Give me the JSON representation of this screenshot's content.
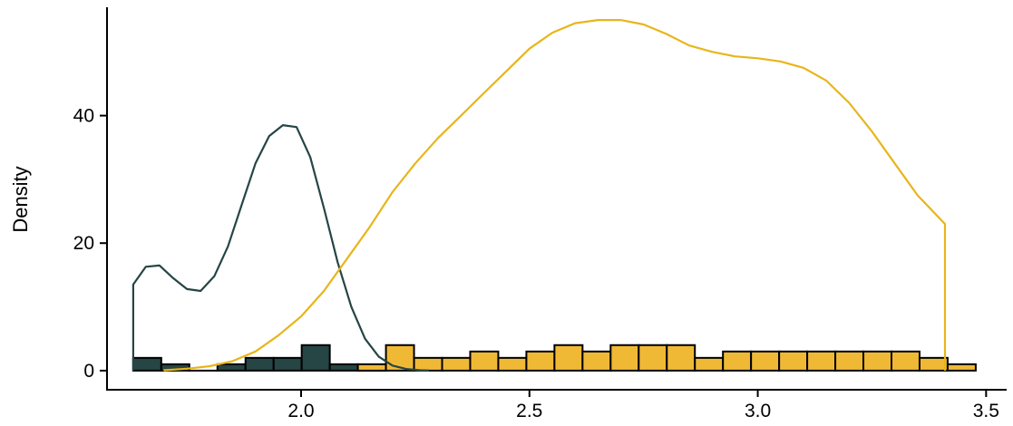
{
  "chart_data": {
    "type": "histogram-density",
    "title": "",
    "xlabel": "",
    "ylabel": "Density",
    "xlim": [
      1.575,
      3.545
    ],
    "ylim": [
      -3,
      57
    ],
    "x_ticks": [
      2.0,
      2.5,
      3.0,
      3.5
    ],
    "x_tick_labels": [
      "2.0",
      "2.5",
      "3.0",
      "3.5"
    ],
    "y_ticks": [
      0,
      20,
      40
    ],
    "y_tick_labels": [
      "0",
      "20",
      "40"
    ],
    "grid": false,
    "legend": "none",
    "bin_width": 0.0615,
    "series": [
      {
        "color": "#264545",
        "fill": "#264545",
        "histogram": {
          "bin_starts": [
            1.6323,
            1.6938,
            1.7553,
            1.8168,
            1.8783,
            1.9398,
            2.0013,
            2.0628,
            2.1243
          ],
          "counts": [
            2,
            1,
            0,
            1,
            2,
            2,
            4,
            1,
            0
          ]
        },
        "density": {
          "x": [
            1.6323,
            1.66,
            1.69,
            1.72,
            1.75,
            1.78,
            1.81,
            1.84,
            1.87,
            1.9,
            1.93,
            1.96,
            1.99,
            2.02,
            2.05,
            2.08,
            2.11,
            2.14,
            2.17,
            2.2,
            2.23,
            2.26,
            2.28
          ],
          "y": [
            13.5,
            16.3,
            16.5,
            14.5,
            12.8,
            12.5,
            14.8,
            19.5,
            26.0,
            32.5,
            36.8,
            38.5,
            38.2,
            33.5,
            25.5,
            17.0,
            10.0,
            5.0,
            2.2,
            0.8,
            0.25,
            0.05,
            0.0
          ]
        }
      },
      {
        "color": "#e8b51a",
        "fill": "#f0b935",
        "histogram": {
          "bin_starts": [
            2.1243,
            2.1858,
            2.2473,
            2.3088,
            2.3703,
            2.4318,
            2.4933,
            2.5548,
            2.6163,
            2.6778,
            2.7393,
            2.8008,
            2.8623,
            2.9238,
            2.9853,
            3.0468,
            3.1083,
            3.1698,
            3.2313,
            3.2928,
            3.3543,
            3.4158
          ],
          "counts": [
            1,
            4,
            2,
            2,
            3,
            2,
            3,
            4,
            3,
            4,
            4,
            4,
            2,
            3,
            3,
            3,
            3,
            3,
            3,
            3,
            2,
            1
          ]
        },
        "density": {
          "x": [
            1.7,
            1.75,
            1.8,
            1.85,
            1.9,
            1.95,
            2.0,
            2.05,
            2.1,
            2.15,
            2.2,
            2.25,
            2.3,
            2.35,
            2.4,
            2.45,
            2.5,
            2.55,
            2.6,
            2.65,
            2.7,
            2.75,
            2.8,
            2.85,
            2.9,
            2.95,
            3.0,
            3.05,
            3.1,
            3.15,
            3.2,
            3.25,
            3.3,
            3.35,
            3.41
          ],
          "y": [
            0.05,
            0.3,
            0.7,
            1.5,
            3.0,
            5.5,
            8.5,
            12.5,
            17.5,
            22.5,
            28.0,
            32.5,
            36.5,
            40.0,
            43.5,
            47.0,
            50.5,
            53.0,
            54.5,
            55.0,
            55.0,
            54.3,
            52.8,
            51.0,
            50.0,
            49.3,
            49.0,
            48.5,
            47.5,
            45.5,
            42.0,
            37.5,
            32.5,
            27.5,
            23.0
          ]
        }
      }
    ]
  }
}
